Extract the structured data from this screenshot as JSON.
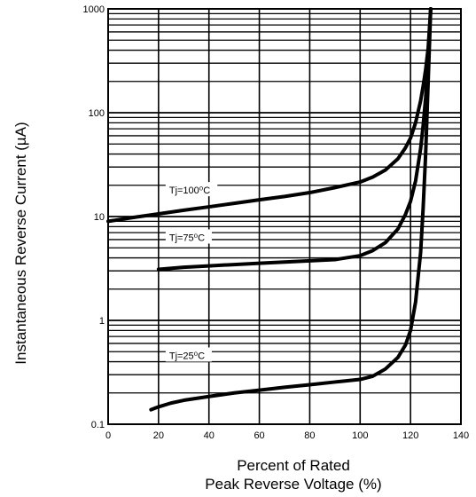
{
  "chart_data": {
    "type": "line",
    "title": "",
    "xlabel_lines": [
      "Percent of Rated",
      "Peak Reverse Voltage (%)"
    ],
    "ylabel": "Instantaneous Reverse Current (µA)",
    "xlim": [
      0,
      140
    ],
    "ylim": [
      0.1,
      1000
    ],
    "yscale": "log",
    "grid": true,
    "x_ticks": [
      "0",
      "20",
      "40",
      "60",
      "80",
      "100",
      "120",
      "140"
    ],
    "y_ticks": [
      "0.1",
      "1",
      "10",
      "100",
      "1000"
    ],
    "series": [
      {
        "name": "Tj=100⁰C",
        "x": [
          0,
          10,
          20,
          30,
          40,
          50,
          60,
          70,
          80,
          90,
          100,
          105,
          110,
          115,
          118,
          120,
          122,
          124,
          125,
          126,
          127,
          128
        ],
        "y": [
          9,
          9.8,
          10.6,
          11.5,
          12.4,
          13.4,
          14.5,
          15.6,
          17,
          19,
          21.5,
          24,
          28,
          36,
          46,
          57,
          80,
          130,
          180,
          260,
          420,
          1000
        ]
      },
      {
        "name": "Tj=75⁰C",
        "x": [
          20,
          30,
          40,
          50,
          60,
          70,
          80,
          90,
          100,
          105,
          110,
          115,
          118,
          120,
          122,
          124,
          125,
          126,
          127,
          128
        ],
        "y": [
          3.1,
          3.25,
          3.35,
          3.45,
          3.55,
          3.65,
          3.75,
          3.85,
          4.2,
          4.7,
          5.6,
          7.6,
          10.5,
          14,
          22,
          45,
          75,
          140,
          330,
          1000
        ]
      },
      {
        "name": "Tj=25⁰C",
        "x": [
          17,
          20,
          25,
          30,
          40,
          50,
          60,
          70,
          80,
          90,
          100,
          105,
          110,
          115,
          118,
          120,
          122,
          124,
          125,
          126,
          127,
          128
        ],
        "y": [
          0.138,
          0.147,
          0.16,
          0.17,
          0.185,
          0.2,
          0.213,
          0.227,
          0.24,
          0.255,
          0.27,
          0.29,
          0.34,
          0.44,
          0.58,
          0.8,
          1.5,
          4.5,
          12,
          40,
          200,
          1000
        ]
      }
    ],
    "curve_labels": [
      {
        "text": "Tj=100⁰C",
        "x": 20,
        "y": 18
      },
      {
        "text": "Tj=75⁰C",
        "x": 20,
        "y": 6.3
      },
      {
        "text": "Tj=25⁰C",
        "x": 20,
        "y": 0.46
      }
    ]
  }
}
